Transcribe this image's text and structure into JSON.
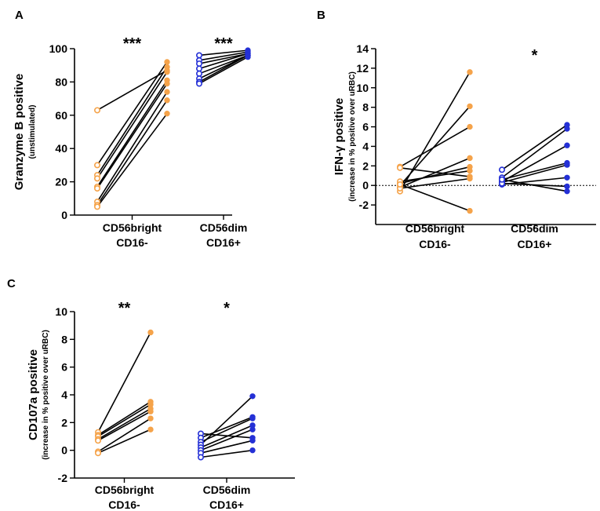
{
  "colors": {
    "orange": "#f5a34a",
    "blue": "#2430d6",
    "axis": "#000000"
  },
  "chart_data": [
    {
      "panel_letter": "A",
      "type": "scatter",
      "subtype": "paired-dots",
      "ylabel": "Granzyme B positive",
      "ylabel_sub": "(unstimulated)",
      "ylim": [
        0,
        100
      ],
      "yticks": [
        0,
        20,
        40,
        60,
        80,
        100
      ],
      "zero_line": false,
      "groups": [
        {
          "label_line1": "CD56bright",
          "label_line2": "CD16-",
          "color": "#f5a34a",
          "significance": "***",
          "pairs": [
            [
              63,
              87
            ],
            [
              30,
              92
            ],
            [
              24,
              89
            ],
            [
              22,
              86
            ],
            [
              17,
              81
            ],
            [
              16,
              79
            ],
            [
              8,
              74
            ],
            [
              6,
              69
            ],
            [
              5,
              61
            ]
          ]
        },
        {
          "label_line1": "CD56dim",
          "label_line2": "CD16+",
          "color": "#2430d6",
          "significance": "***",
          "pairs": [
            [
              96,
              99
            ],
            [
              93,
              98
            ],
            [
              91,
              97
            ],
            [
              88,
              97
            ],
            [
              85,
              96
            ],
            [
              82,
              96
            ],
            [
              80,
              96
            ],
            [
              79,
              95
            ]
          ]
        }
      ]
    },
    {
      "panel_letter": "B",
      "type": "scatter",
      "subtype": "paired-dots",
      "ylabel": "IFN-γ positive",
      "ylabel_sub": "(increase in % positive over uRBC)",
      "ylim": [
        -4,
        14
      ],
      "yticks": [
        -2,
        0,
        2,
        4,
        6,
        8,
        10,
        12,
        14
      ],
      "zero_line": true,
      "groups": [
        {
          "label_line1": "CD56bright",
          "label_line2": "CD16-",
          "color": "#f5a34a",
          "significance": "",
          "pairs": [
            [
              -0.6,
              11.6
            ],
            [
              0.0,
              8.1
            ],
            [
              1.9,
              6.0
            ],
            [
              -0.2,
              2.8
            ],
            [
              0.2,
              1.9
            ],
            [
              0.4,
              1.5
            ],
            [
              1.8,
              0.9
            ],
            [
              -0.3,
              0.7
            ],
            [
              0.1,
              -2.6
            ]
          ]
        },
        {
          "label_line1": "CD56dim",
          "label_line2": "CD16+",
          "color": "#2430d6",
          "significance": "*",
          "pairs": [
            [
              1.6,
              6.2
            ],
            [
              0.8,
              5.8
            ],
            [
              0.4,
              4.1
            ],
            [
              0.6,
              2.3
            ],
            [
              0.3,
              2.1
            ],
            [
              0.1,
              0.8
            ],
            [
              0.2,
              -0.1
            ],
            [
              0.6,
              -0.6
            ]
          ]
        }
      ]
    },
    {
      "panel_letter": "C",
      "type": "scatter",
      "subtype": "paired-dots",
      "ylabel": "CD107a positive",
      "ylabel_sub": "(increase in % positive over uRBC)",
      "ylim": [
        -2,
        10
      ],
      "yticks": [
        -2,
        0,
        2,
        4,
        6,
        8,
        10
      ],
      "zero_line": false,
      "groups": [
        {
          "label_line1": "CD56bright",
          "label_line2": "CD16-",
          "color": "#f5a34a",
          "significance": "**",
          "pairs": [
            [
              1.3,
              8.5
            ],
            [
              1.1,
              3.5
            ],
            [
              1.0,
              3.3
            ],
            [
              0.8,
              3.0
            ],
            [
              0.7,
              2.8
            ],
            [
              -0.1,
              2.3
            ],
            [
              -0.2,
              1.5
            ]
          ]
        },
        {
          "label_line1": "CD56dim",
          "label_line2": "CD16+",
          "color": "#2430d6",
          "significance": "*",
          "pairs": [
            [
              1.2,
              0.9
            ],
            [
              0.9,
              2.4
            ],
            [
              0.6,
              2.3
            ],
            [
              0.4,
              3.9
            ],
            [
              0.2,
              1.8
            ],
            [
              0.0,
              1.5
            ],
            [
              -0.2,
              0.7
            ],
            [
              -0.5,
              0.0
            ]
          ]
        }
      ]
    }
  ]
}
